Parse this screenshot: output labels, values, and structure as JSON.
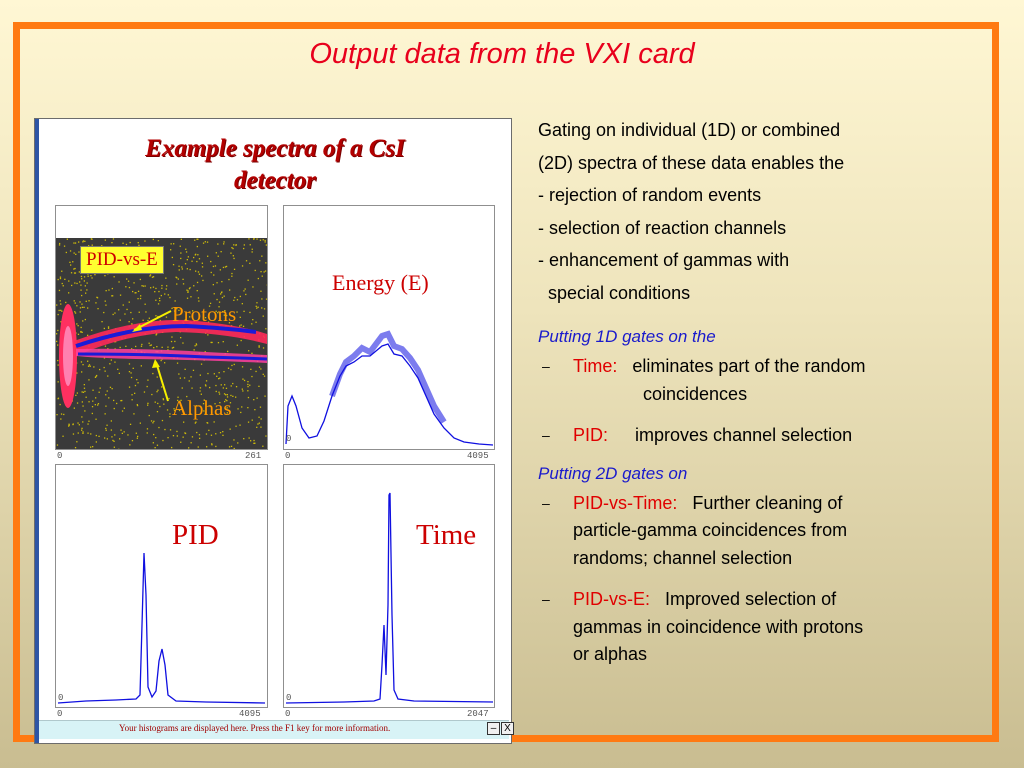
{
  "title": "Output data from the VXI card",
  "figure": {
    "title_line1": "Example spectra of a CsI",
    "title_line2": "detector",
    "panels": {
      "pid_vs_e": {
        "box_label": "PID-vs-E",
        "protons_label": "Protons",
        "alphas_label": "Alphas",
        "axis_min": "0",
        "axis_max": "261"
      },
      "energy": {
        "label": "Energy (E)",
        "axis_min": "0",
        "axis_max": "4095",
        "y_zero": "0"
      },
      "pid": {
        "label": "PID",
        "axis_min": "0",
        "axis_max": "4095",
        "y_zero": "0"
      },
      "time": {
        "label": "Time",
        "axis_min": "0",
        "axis_max": "2047",
        "y_zero": "0"
      }
    },
    "status_text": "Your histograms are displayed here. Press the F1 key for more information.",
    "btn_minimize": "–",
    "btn_close": "X"
  },
  "body": {
    "lines": [
      "Gating on individual (1D) or combined",
      "(2D) spectra of these data enables the",
      "- rejection of random events",
      "- selection of reaction channels",
      "- enhancement of gammas with",
      "  special conditions"
    ],
    "section1_head": "Putting 1D gates on the",
    "section1_items": [
      {
        "key": "Time:",
        "text_line1": "eliminates part of the random",
        "text_line2": "coincidences"
      },
      {
        "key": "PID:",
        "text_line1": "improves channel selection"
      }
    ],
    "section2_head": "Putting 2D gates on",
    "section2_items": [
      {
        "key": "PID-vs-Time:",
        "text_line1": "Further cleaning of",
        "text_line2": "particle-gamma coincidences from",
        "text_line3": "randoms; channel selection"
      },
      {
        "key": "PID-vs-E:",
        "text_line1": "Improved selection of",
        "text_line2": "gammas in coincidence with protons",
        "text_line3": "or alphas"
      }
    ],
    "dash": "–"
  },
  "colors": {
    "title_red": "#e8001c",
    "frame_orange": "#ff7a12",
    "section_blue": "#1a1acc",
    "spectrum_blue": "#1010e0"
  }
}
